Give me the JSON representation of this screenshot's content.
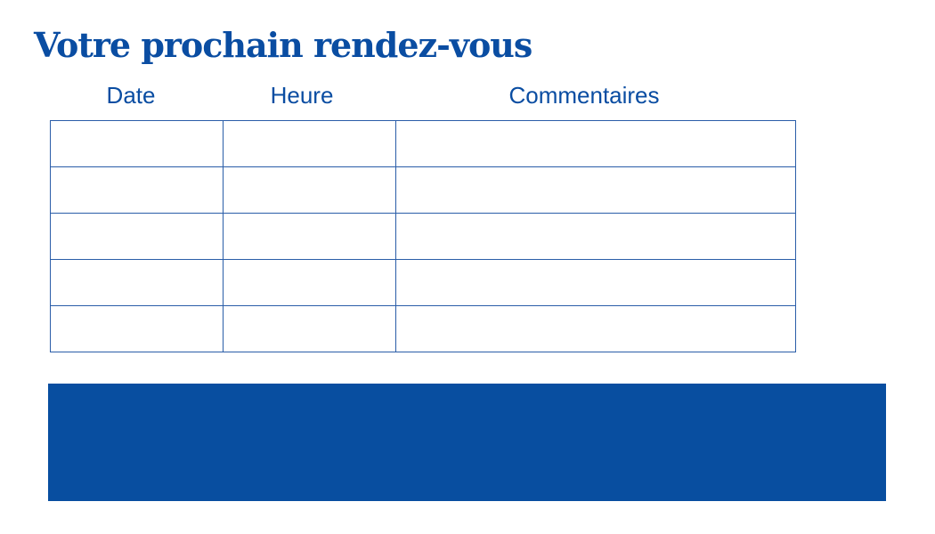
{
  "title": "Votre prochain rendez-vous",
  "columns": [
    "Date",
    "Heure",
    "Commentaires"
  ],
  "row_count": 5,
  "colors": {
    "primary": "#0a4da2",
    "band": "#084ea0"
  }
}
